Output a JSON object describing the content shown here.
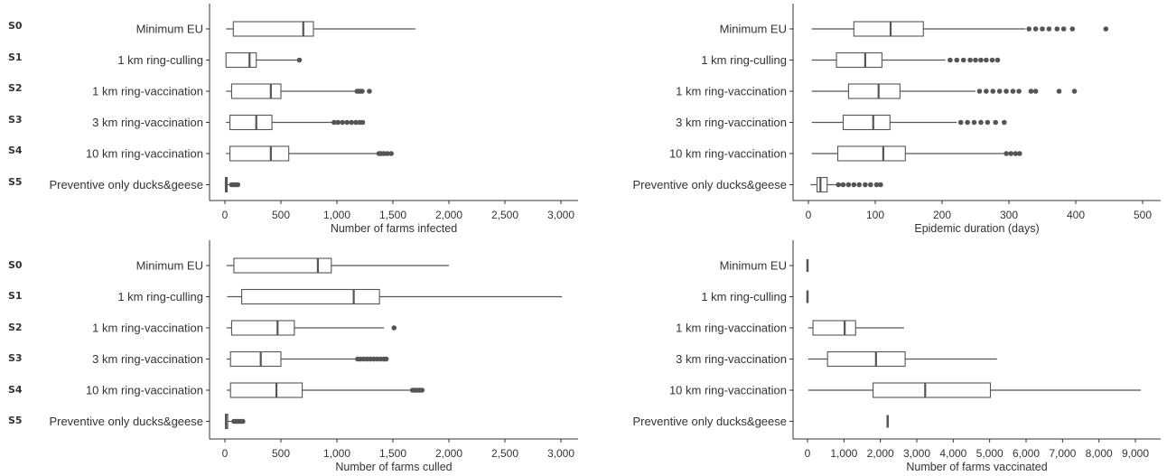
{
  "scenario_codes": [
    "S0",
    "S1",
    "S2",
    "S3",
    "S4",
    "S5"
  ],
  "chart_data": [
    {
      "type": "boxplot",
      "xlabel": "Number of farms infected",
      "xlim": [
        0,
        3100
      ],
      "ticks": [
        0,
        500,
        1000,
        1500,
        2000,
        2500,
        3000
      ],
      "tick_labels": [
        "0",
        "500",
        "1,000",
        "1,500",
        "2,000",
        "2,500",
        "3,000"
      ],
      "categories": [
        "Minimum EU",
        "1 km ring-culling",
        "1 km ring-vaccination",
        "3 km ring-vaccination",
        "10 km ring-vaccination",
        "Preventive only ducks&geese"
      ],
      "boxes": [
        {
          "min": 10,
          "q1": 75,
          "median": 700,
          "q3": 790,
          "max": 1700,
          "outliers": []
        },
        {
          "min": 5,
          "q1": 10,
          "median": 220,
          "q3": 280,
          "max": 650,
          "outliers": [
            665
          ]
        },
        {
          "min": 10,
          "q1": 60,
          "median": 410,
          "q3": 500,
          "max": 1170,
          "outliers": [
            1180,
            1195,
            1210,
            1225,
            1290
          ]
        },
        {
          "min": 10,
          "q1": 45,
          "median": 280,
          "q3": 420,
          "max": 960,
          "outliers": [
            975,
            1010,
            1050,
            1090,
            1130,
            1170,
            1205,
            1230
          ]
        },
        {
          "min": 10,
          "q1": 45,
          "median": 410,
          "q3": 570,
          "max": 1360,
          "outliers": [
            1375,
            1395,
            1420,
            1450,
            1485
          ]
        },
        {
          "min": 0,
          "q1": 5,
          "median": 10,
          "q3": 20,
          "max": 50,
          "outliers": [
            60,
            80,
            100,
            115
          ]
        }
      ]
    },
    {
      "type": "boxplot",
      "xlabel": "Epidemic duration (days)",
      "xlim": [
        0,
        520
      ],
      "ticks": [
        0,
        100,
        200,
        300,
        400,
        500
      ],
      "tick_labels": [
        "0",
        "100",
        "200",
        "300",
        "400",
        "500"
      ],
      "categories": [
        "Minimum EU",
        "1 km ring-culling",
        "1 km ring-vaccination",
        "3 km ring-vaccination",
        "10 km ring-vaccination",
        "Preventive only ducks&geese"
      ],
      "boxes": [
        {
          "min": 5,
          "q1": 68,
          "median": 123,
          "q3": 172,
          "max": 325,
          "outliers": [
            330,
            340,
            350,
            360,
            372,
            382,
            395,
            445
          ]
        },
        {
          "min": 5,
          "q1": 42,
          "median": 85,
          "q3": 110,
          "max": 205,
          "outliers": [
            212,
            222,
            232,
            242,
            250,
            258,
            266,
            275,
            283
          ]
        },
        {
          "min": 5,
          "q1": 60,
          "median": 105,
          "q3": 137,
          "max": 250,
          "outliers": [
            256,
            266,
            276,
            286,
            296,
            306,
            315,
            333,
            340,
            375,
            398
          ]
        },
        {
          "min": 5,
          "q1": 52,
          "median": 97,
          "q3": 122,
          "max": 222,
          "outliers": [
            228,
            238,
            248,
            258,
            268,
            280,
            293
          ]
        },
        {
          "min": 5,
          "q1": 44,
          "median": 112,
          "q3": 145,
          "max": 292,
          "outliers": [
            296,
            303,
            310,
            316
          ]
        },
        {
          "min": 3,
          "q1": 13,
          "median": 18,
          "q3": 28,
          "max": 42,
          "outliers": [
            45,
            52,
            60,
            68,
            76,
            85,
            93,
            102,
            108
          ]
        }
      ]
    },
    {
      "type": "boxplot",
      "xlabel": "Number of farms culled",
      "xlim": [
        0,
        3100
      ],
      "ticks": [
        0,
        500,
        1000,
        1500,
        2000,
        2500,
        3000
      ],
      "tick_labels": [
        "0",
        "500",
        "1,000",
        "1,500",
        "2,000",
        "2,500",
        "3,000"
      ],
      "categories": [
        "Minimum EU",
        "1 km ring-culling",
        "1 km ring-vaccination",
        "3 km ring-vaccination",
        "10 km ring-vaccination",
        "Preventive only ducks&geese"
      ],
      "boxes": [
        {
          "min": 15,
          "q1": 80,
          "median": 830,
          "q3": 950,
          "max": 2000,
          "outliers": []
        },
        {
          "min": 20,
          "q1": 150,
          "median": 1150,
          "q3": 1380,
          "max": 3010,
          "outliers": []
        },
        {
          "min": 15,
          "q1": 60,
          "median": 470,
          "q3": 620,
          "max": 1420,
          "outliers": [
            1510
          ]
        },
        {
          "min": 15,
          "q1": 50,
          "median": 320,
          "q3": 500,
          "max": 1170,
          "outliers": [
            1185,
            1210,
            1240,
            1270,
            1300,
            1330,
            1360,
            1390,
            1420,
            1440
          ]
        },
        {
          "min": 15,
          "q1": 50,
          "median": 460,
          "q3": 690,
          "max": 1660,
          "outliers": [
            1675,
            1695,
            1715,
            1740,
            1760
          ]
        },
        {
          "min": 0,
          "q1": 5,
          "median": 10,
          "q3": 25,
          "max": 70,
          "outliers": [
            80,
            100,
            120,
            140,
            160
          ]
        }
      ]
    },
    {
      "type": "boxplot",
      "xlabel": "Number of farms vaccinated",
      "xlim": [
        0,
        9400
      ],
      "ticks": [
        0,
        1000,
        2000,
        3000,
        4000,
        5000,
        6000,
        7000,
        8000,
        9000
      ],
      "tick_labels": [
        "0",
        "1,000",
        "2,000",
        "3,000",
        "4,000",
        "5,000",
        "6,000",
        "7,000",
        "8,000",
        "9,000"
      ],
      "categories": [
        "Minimum EU",
        "1 km ring-culling",
        "1 km ring-vaccination",
        "3 km ring-vaccination",
        "10 km ring-vaccination",
        "Preventive only ducks&geese"
      ],
      "boxes": [
        {
          "min": 0,
          "q1": 0,
          "median": 0,
          "q3": 0,
          "max": 0,
          "outliers": []
        },
        {
          "min": 0,
          "q1": 0,
          "median": 0,
          "q3": 0,
          "max": 0,
          "outliers": []
        },
        {
          "min": 20,
          "q1": 150,
          "median": 1020,
          "q3": 1320,
          "max": 2650,
          "outliers": []
        },
        {
          "min": 20,
          "q1": 550,
          "median": 1880,
          "q3": 2680,
          "max": 5200,
          "outliers": []
        },
        {
          "min": 20,
          "q1": 1800,
          "median": 3230,
          "q3": 5020,
          "max": 9150,
          "outliers": []
        },
        {
          "min": 2200,
          "q1": 2200,
          "median": 2200,
          "q3": 2200,
          "max": 2200,
          "outliers": []
        }
      ]
    }
  ]
}
